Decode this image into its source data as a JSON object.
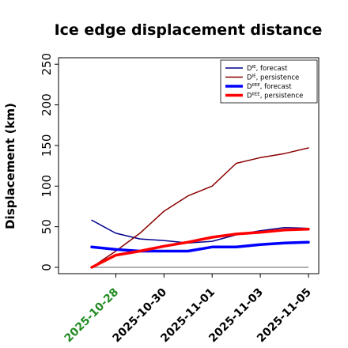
{
  "chart_data": {
    "type": "line",
    "title": "Ice edge displacement distance",
    "ylabel": "Displacement (km)",
    "xlabel": "",
    "ylim": [
      0,
      258
    ],
    "yticks": [
      0,
      50,
      100,
      150,
      200,
      250
    ],
    "x": [
      "2025-10-27",
      "2025-10-28",
      "2025-10-29",
      "2025-10-30",
      "2025-10-31",
      "2025-11-01",
      "2025-11-02",
      "2025-11-03",
      "2025-11-04",
      "2025-11-05"
    ],
    "xticks": [
      "2025-10-28",
      "2025-10-30",
      "2025-11-01",
      "2025-11-03",
      "2025-11-05"
    ],
    "highlighted_xtick": "2025-10-28",
    "highlight_color": "#228b22",
    "legend_position": "top-right",
    "grid": false,
    "series": [
      {
        "name": "D^IE_forecast",
        "legend_main": "D",
        "legend_sup": "IE",
        "legend_sub": " forecast",
        "color": "#00008b",
        "width": 1.5,
        "values": [
          58,
          42,
          35,
          33,
          30,
          32,
          40,
          45,
          49,
          48
        ]
      },
      {
        "name": "D^IE_persistence",
        "legend_main": "D",
        "legend_sup": "IE",
        "legend_sub": " persistence",
        "color": "#8b0000",
        "width": 1.5,
        "values": [
          0,
          20,
          42,
          69,
          88,
          100,
          128,
          135,
          140,
          147
        ]
      },
      {
        "name": "D^IIEE_forecast",
        "legend_main": "D",
        "legend_sup": "IIEE",
        "legend_sub": " forecast",
        "color": "#0000ff",
        "width": 3.5,
        "values": [
          25,
          22,
          20,
          20,
          20,
          25,
          25,
          28,
          30,
          31
        ]
      },
      {
        "name": "D^IIEE_persistence",
        "legend_main": "D",
        "legend_sup": "IIEE",
        "legend_sub": " persistence",
        "color": "#ff0000",
        "width": 3.5,
        "values": [
          0,
          15,
          20,
          26,
          31,
          37,
          41,
          43,
          46,
          47
        ]
      }
    ],
    "baseline": {
      "value": 0,
      "color": "#808080"
    }
  }
}
